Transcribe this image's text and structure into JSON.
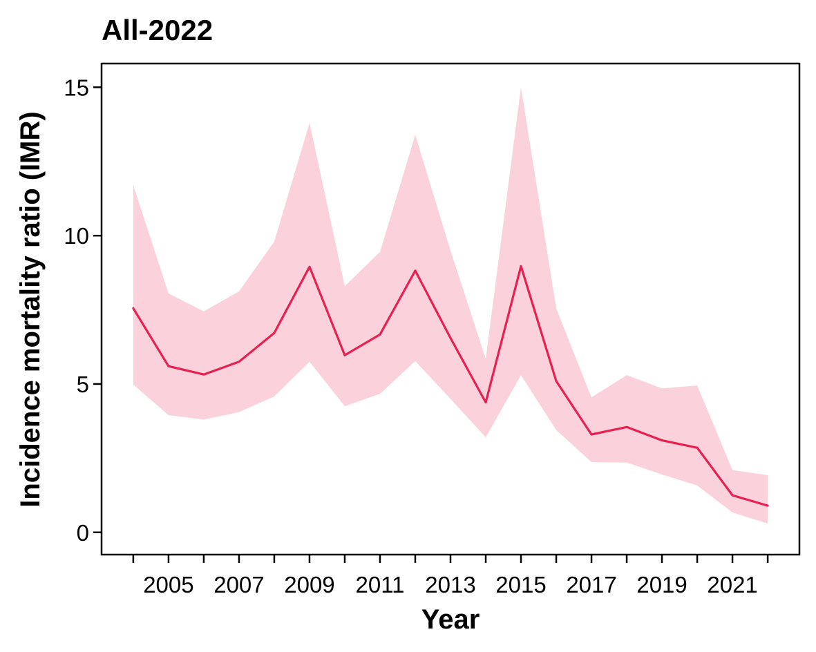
{
  "chart_data": {
    "type": "line",
    "title": "All-2022",
    "xlabel": "Year",
    "ylabel": "Incidence mortality ratio (IMR)",
    "x": [
      2004,
      2005,
      2006,
      2007,
      2008,
      2009,
      2010,
      2011,
      2012,
      2013,
      2014,
      2015,
      2016,
      2017,
      2018,
      2019,
      2020,
      2021,
      2022
    ],
    "x_tick_labels": [
      "2005",
      "2007",
      "2009",
      "2011",
      "2013",
      "2015",
      "2017",
      "2019",
      "2021"
    ],
    "x_tick_label_values": [
      2005,
      2007,
      2009,
      2011,
      2013,
      2015,
      2017,
      2019,
      2021
    ],
    "xlim": [
      2003.1,
      2022.9
    ],
    "ylim": [
      -0.75,
      15.8
    ],
    "y_ticks": [
      0,
      5,
      10,
      15
    ],
    "grid": false,
    "series": [
      {
        "values": [
          7.55,
          5.6,
          5.32,
          5.75,
          6.72,
          8.95,
          5.97,
          6.67,
          8.82,
          6.55,
          4.38,
          8.97,
          5.1,
          3.3,
          3.55,
          3.1,
          2.85,
          1.25,
          0.9
        ],
        "lower": [
          4.98,
          3.95,
          3.8,
          4.05,
          4.58,
          5.75,
          4.25,
          4.67,
          5.77,
          4.5,
          3.2,
          5.3,
          3.45,
          2.37,
          2.35,
          1.95,
          1.58,
          0.67,
          0.3
        ],
        "upper": [
          11.7,
          8.05,
          7.45,
          8.12,
          9.8,
          13.8,
          8.3,
          9.45,
          13.4,
          9.5,
          5.85,
          15.0,
          7.55,
          4.55,
          5.3,
          4.85,
          4.95,
          2.1,
          1.93
        ],
        "color": "#e8204f",
        "band_color": "#fbd2db"
      }
    ]
  }
}
